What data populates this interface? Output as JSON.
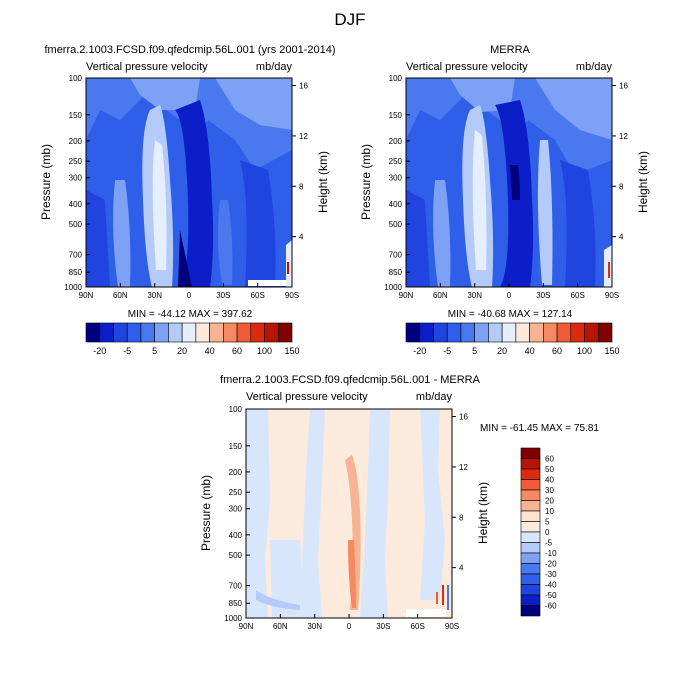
{
  "figure": {
    "title": "DJF"
  },
  "chart_data": [
    {
      "type": "heatmap",
      "title": "fmerra.2.1003.FCSD.f09.qfedcmip.56L.001 (yrs 2001-2014)",
      "subtitle_left": "Vertical pressure velocity",
      "subtitle_right": "mb/day",
      "xlabel": "",
      "ylabel": "Pressure (mb)",
      "y2label": "Height (km)",
      "x_ticks": [
        "90N",
        "60N",
        "30N",
        "0",
        "30S",
        "60S",
        "90S"
      ],
      "y_ticks": [
        100,
        150,
        200,
        250,
        300,
        400,
        500,
        700,
        850,
        1000
      ],
      "y2_ticks": [
        4,
        8,
        12,
        16
      ],
      "yscale": "log",
      "ylim": [
        1000,
        100
      ],
      "stats": "MIN = -44.12  MAX = 397.62",
      "colorbar_labels": [
        "-20",
        "-5",
        "5",
        "20",
        "40",
        "60",
        "100",
        "150"
      ]
    },
    {
      "type": "heatmap",
      "title": "MERRA",
      "subtitle_left": "Vertical pressure velocity",
      "subtitle_right": "mb/day",
      "xlabel": "",
      "ylabel": "Pressure (mb)",
      "y2label": "Height (km)",
      "x_ticks": [
        "90N",
        "60N",
        "30N",
        "0",
        "30S",
        "60S",
        "90S"
      ],
      "y_ticks": [
        100,
        150,
        200,
        250,
        300,
        400,
        500,
        700,
        850,
        1000
      ],
      "y2_ticks": [
        4,
        8,
        12,
        16
      ],
      "yscale": "log",
      "ylim": [
        1000,
        100
      ],
      "stats": "MIN = -40.68  MAX = 127.14",
      "colorbar_labels": [
        "-20",
        "-5",
        "5",
        "20",
        "40",
        "60",
        "100",
        "150"
      ]
    },
    {
      "type": "heatmap",
      "title": "fmerra.2.1003.FCSD.f09.qfedcmip.56L.001 - MERRA",
      "subtitle_left": "Vertical pressure velocity",
      "subtitle_right": "mb/day",
      "xlabel": "",
      "ylabel": "Pressure (mb)",
      "y2label": "Height (km)",
      "x_ticks": [
        "90N",
        "60N",
        "30N",
        "0",
        "30S",
        "60S",
        "90S"
      ],
      "y_ticks": [
        100,
        150,
        200,
        250,
        300,
        400,
        500,
        700,
        850,
        1000
      ],
      "y2_ticks": [
        4,
        8,
        12,
        16
      ],
      "yscale": "log",
      "ylim": [
        1000,
        100
      ],
      "stats": "MIN = -61.45  MAX =  75.81",
      "colorbar_labels": [
        "60",
        "50",
        "40",
        "30",
        "20",
        "10",
        "5",
        "0",
        "-5",
        "-10",
        "-20",
        "-30",
        "-40",
        "-50",
        "-60"
      ]
    }
  ],
  "colors": {
    "abs_scale": [
      "#00007e",
      "#0b1ec8",
      "#1f44e0",
      "#2f5ee8",
      "#4a78ee",
      "#7da1f5",
      "#b4cbfa",
      "#e6eefd",
      "#fde8dc",
      "#f7b394",
      "#f58a62",
      "#f05a36",
      "#dd2a0d",
      "#b81305",
      "#7e0000"
    ],
    "diff_scale": [
      "#7e0000",
      "#b81305",
      "#dd2a0d",
      "#f05a36",
      "#f58a62",
      "#f7b394",
      "#fde2cf",
      "#fcebdd",
      "#d8e6fb",
      "#b4cbfa",
      "#7da1f5",
      "#4a78ee",
      "#2f5ee8",
      "#1f44e0",
      "#0b1ec8",
      "#00007e"
    ]
  }
}
